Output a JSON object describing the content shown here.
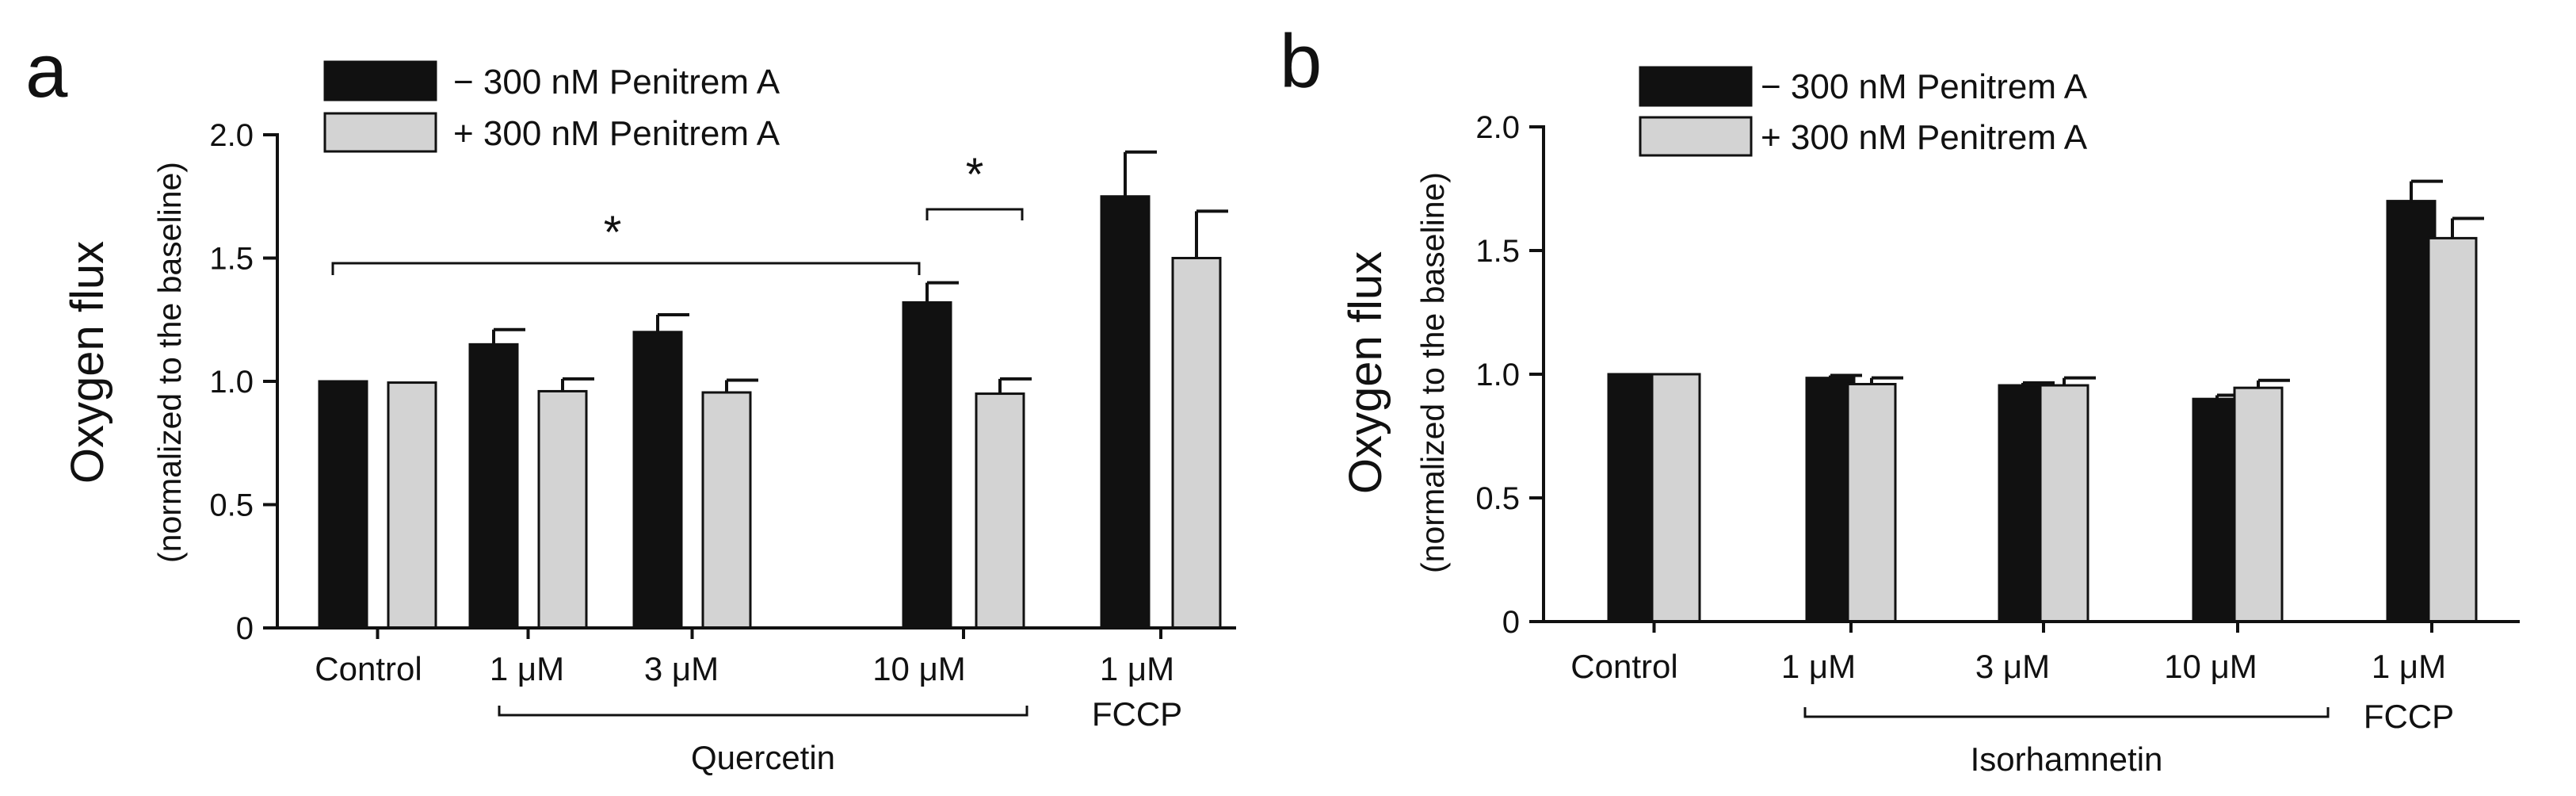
{
  "chart_data": [
    {
      "panel": "a",
      "type": "bar",
      "ylabel": "Oxygen flux",
      "ylabel_sub": "(normalized to the baseline)",
      "ylim": [
        0,
        2.0
      ],
      "yticks": [
        "0",
        "0.5",
        "1.0",
        "1.5",
        "2.0"
      ],
      "categories": [
        "Control",
        "1 μM",
        "3 μM",
        "10 μM",
        "1 μM"
      ],
      "categories_line2": [
        "",
        "",
        "",
        "",
        "FCCP"
      ],
      "group_label": "Quercetin",
      "legend": [
        "− 300 nM Penitrem A",
        "+ 300 nM Penitrem A"
      ],
      "series": [
        {
          "name": "− 300 nM Penitrem A",
          "color": "#111111",
          "values": [
            1.0,
            1.15,
            1.2,
            1.32,
            1.75
          ],
          "errors": [
            0,
            0.06,
            0.07,
            0.08,
            0.18
          ]
        },
        {
          "name": "+ 300 nM Penitrem A",
          "color": "#d3d3d3",
          "values": [
            0.995,
            0.96,
            0.955,
            0.95,
            1.5
          ],
          "errors": [
            0,
            0.05,
            0.05,
            0.06,
            0.19
          ]
        }
      ],
      "significance": [
        "*",
        "*"
      ]
    },
    {
      "panel": "b",
      "type": "bar",
      "ylabel": "Oxygen flux",
      "ylabel_sub": "(normalized to the baseline)",
      "ylim": [
        0,
        2.0
      ],
      "yticks": [
        "0",
        "0.5",
        "1.0",
        "1.5",
        "2.0"
      ],
      "categories": [
        "Control",
        "1 μM",
        "3 μM",
        "10 μM",
        "1 μM"
      ],
      "categories_line2": [
        "",
        "",
        "",
        "",
        "FCCP"
      ],
      "group_label": "Isorhamnetin",
      "legend": [
        "− 300 nM Penitrem A",
        "+ 300 nM Penitrem A"
      ],
      "series": [
        {
          "name": "− 300 nM Penitrem A",
          "color": "#111111",
          "values": [
            1.0,
            0.985,
            0.955,
            0.9,
            1.7
          ],
          "errors": [
            0,
            0.01,
            0.01,
            0.015,
            0.08
          ]
        },
        {
          "name": "+ 300 nM Penitrem A",
          "color": "#d3d3d3",
          "values": [
            1.0,
            0.96,
            0.955,
            0.945,
            1.55
          ],
          "errors": [
            0,
            0.025,
            0.03,
            0.03,
            0.08
          ]
        }
      ],
      "significance": []
    }
  ]
}
